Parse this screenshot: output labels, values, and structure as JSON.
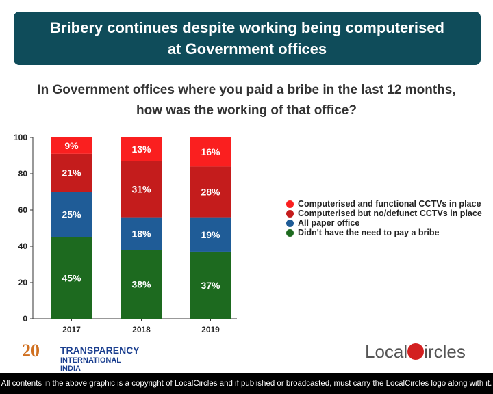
{
  "header": {
    "title_line1": "Bribery continues despite working being computerised",
    "title_line2": "at Government offices"
  },
  "question": {
    "line1": "In Government offices where you paid a bribe in the last 12 months,",
    "line2": "how was the working of that office?"
  },
  "chart_data": {
    "type": "bar",
    "stacked": true,
    "categories": [
      "2017",
      "2018",
      "2019"
    ],
    "ylim": [
      0,
      100
    ],
    "yticks": [
      0,
      20,
      40,
      60,
      80,
      100
    ],
    "grid": false,
    "legend_position": "right",
    "series": [
      {
        "name": "Didn't have the need to pay a bribe",
        "values": [
          45,
          38,
          37
        ],
        "labels": [
          "45%",
          "38%",
          "37%"
        ],
        "color": "#1d6a1f"
      },
      {
        "name": "All paper office",
        "values": [
          25,
          18,
          19
        ],
        "labels": [
          "25%",
          "18%",
          "19%"
        ],
        "color": "#1f5c97"
      },
      {
        "name": "Computerised but no/defunct CCTVs in place",
        "values": [
          21,
          31,
          28
        ],
        "labels": [
          "21%",
          "31%",
          "28%"
        ],
        "color": "#c41c1c"
      },
      {
        "name": "Computerised and functional CCTVs in place",
        "values": [
          9,
          13,
          16
        ],
        "labels": [
          "9%",
          "13%",
          "16%"
        ],
        "color": "#fa1f1f"
      }
    ]
  },
  "logos": {
    "ti_number": "20",
    "ti_line1": "TRANSPARENCY",
    "ti_line2": "INTERNATIONAL INDIA",
    "lc_a": "Local",
    "lc_b": "ircles"
  },
  "footer": "All contents in the above graphic is a copyright of LocalCircles and if published or broadcasted, must carry the LocalCircles logo along with it."
}
